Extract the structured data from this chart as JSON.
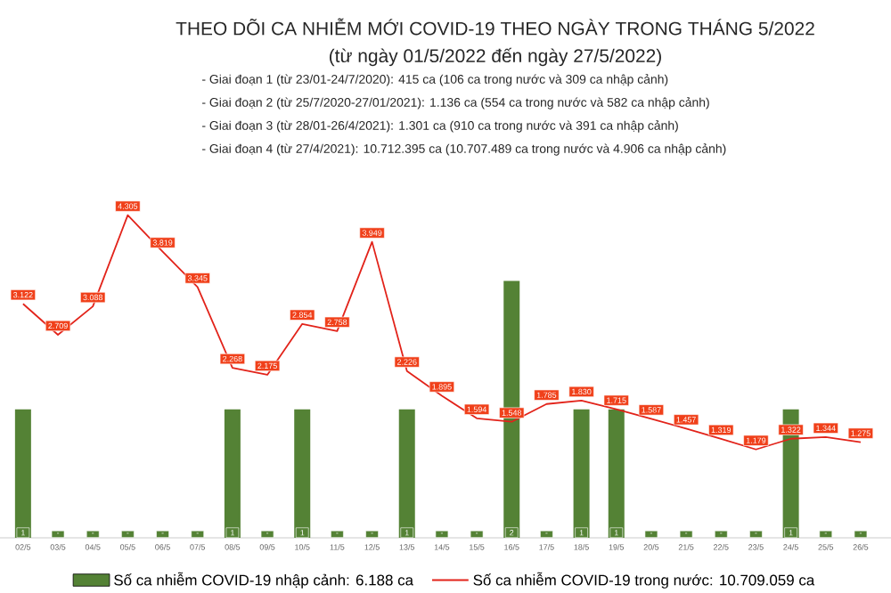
{
  "chart_data": {
    "type": "bar",
    "title": "THEO DÕI CA NHIỄM MỚI COVID-19 THEO NGÀY TRONG THÁNG 5/2022",
    "subtitle": "(từ ngày 01/5/2022 đến ngày 27/5/2022)",
    "annotations": [
      "- Giai đoạn 1 (từ 23/01-24/7/2020): 415 ca (106 ca trong nước và 309 ca nhập cảnh)",
      "- Giai đoạn 2 (từ 25/7/2020-27/01/2021): 1.136 ca (554 ca trong nước và 582 ca nhập cảnh)",
      "- Giai đoạn 3 (từ 28/01-26/4/2021): 1.301 ca (910 ca trong nước và 391 ca nhập cảnh)",
      "- Giai đoạn 4 (từ 27/4/2021): 10.712.395 ca (10.707.489 ca trong nước và 4.906 ca nhập cảnh)"
    ],
    "categories": [
      "02/5",
      "03/5",
      "04/5",
      "05/5",
      "06/5",
      "07/5",
      "08/5",
      "09/5",
      "10/5",
      "11/5",
      "12/5",
      "13/5",
      "14/5",
      "15/5",
      "16/5",
      "17/5",
      "18/5",
      "19/5",
      "20/5",
      "21/5",
      "22/5",
      "23/5",
      "24/5",
      "25/5",
      "26/5"
    ],
    "series": [
      {
        "name": "Số ca nhiễm COVID-19 nhập cảnh: 6.188 ca",
        "axis": "y",
        "color": "#548235",
        "values": [
          1,
          0,
          0,
          0,
          0,
          0,
          1,
          0,
          1,
          0,
          0,
          1,
          0,
          0,
          2,
          0,
          1,
          1,
          0,
          0,
          0,
          0,
          1,
          0,
          0
        ],
        "value_labels": [
          "1",
          "-",
          "-",
          "-",
          "-",
          "-",
          "1",
          "-",
          "1",
          "-",
          "-",
          "1",
          "-",
          "-",
          "2",
          "-",
          "1",
          "1",
          "-",
          "-",
          "-",
          "-",
          "1",
          "-",
          "-"
        ]
      },
      {
        "name": "Số ca nhiễm COVID-19 trong nước: 10.709.059 ca",
        "type": "line",
        "axis": "y2",
        "color": "#e2231a",
        "values": [
          3122,
          2709,
          3088,
          4305,
          3819,
          3345,
          2268,
          2175,
          2854,
          2758,
          3949,
          2226,
          1895,
          1594,
          1548,
          1785,
          1830,
          1715,
          1587,
          1457,
          1319,
          1179,
          1322,
          1344,
          1275
        ],
        "value_labels": [
          "3.122",
          "2.709",
          "3.088",
          "4.305",
          "3.819",
          "3.345",
          "2.268",
          "2.175",
          "2.854",
          "2.758",
          "3.949",
          "2.226",
          "1.895",
          "1.594",
          "1.548",
          "1.785",
          "1.830",
          "1.715",
          "1.587",
          "1.457",
          "1.319",
          "1.179",
          "1.322",
          "1.344",
          "1.275"
        ]
      }
    ],
    "legend": "bottom",
    "tick_labels": "x"
  }
}
